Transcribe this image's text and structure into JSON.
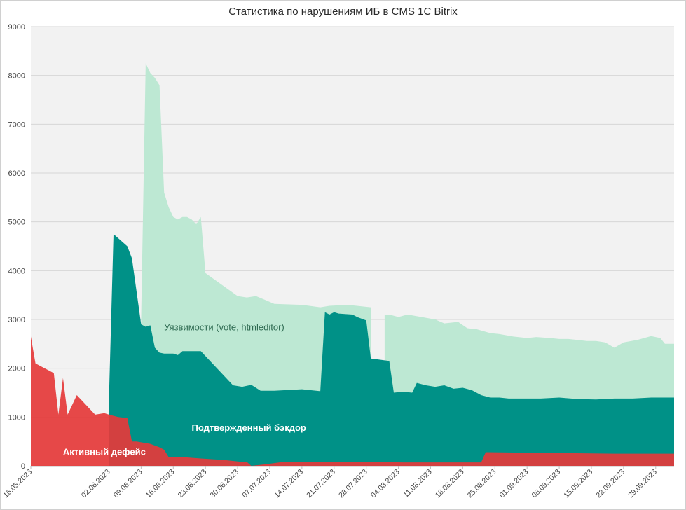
{
  "chart_data": {
    "type": "area",
    "title": "Статистика по нарушениям ИБ в CMS 1C Bitrix",
    "x_format": "DD.MM.YYYY",
    "start_date": "2023-05-16",
    "xlim": [
      "2023-05-16",
      "2023-10-03"
    ],
    "ylim": [
      0,
      9000
    ],
    "yticks": [
      0,
      1000,
      2000,
      3000,
      4000,
      5000,
      6000,
      7000,
      8000,
      9000
    ],
    "xtick_labels": [
      "16.05.2023",
      "02.06.2023",
      "09.06.2023",
      "16.06.2023",
      "23.06.2023",
      "30.06.2023",
      "07.07.2023",
      "14.07.2023",
      "21.07.2023",
      "28.07.2023",
      "04.08.2023",
      "11.08.2023",
      "18.08.2023",
      "25.08.2023",
      "01.09.2023",
      "08.09.2023",
      "15.09.2023",
      "22.09.2023",
      "29.09.2023"
    ],
    "xtick_dates": [
      "2023-05-16",
      "2023-06-02",
      "2023-06-09",
      "2023-06-16",
      "2023-06-23",
      "2023-06-30",
      "2023-07-07",
      "2023-07-14",
      "2023-07-21",
      "2023-07-28",
      "2023-08-04",
      "2023-08-11",
      "2023-08-18",
      "2023-08-25",
      "2023-09-01",
      "2023-09-08",
      "2023-09-15",
      "2023-09-22",
      "2023-09-29"
    ],
    "grid": true,
    "legend": "none",
    "series": [
      {
        "name": "Уязвимости (vote, htmleditor)",
        "color": "#bde8d3",
        "points": [
          [
            "2023-06-09",
            3000
          ],
          [
            "2023-06-10",
            8250
          ],
          [
            "2023-06-11",
            8050
          ],
          [
            "2023-06-12",
            7950
          ],
          [
            "2023-06-13",
            7800
          ],
          [
            "2023-06-14",
            5600
          ],
          [
            "2023-06-15",
            5300
          ],
          [
            "2023-06-16",
            5100
          ],
          [
            "2023-06-17",
            5050
          ],
          [
            "2023-06-18",
            5100
          ],
          [
            "2023-06-19",
            5100
          ],
          [
            "2023-06-20",
            5050
          ],
          [
            "2023-06-21",
            4950
          ],
          [
            "2023-06-22",
            5100
          ],
          [
            "2023-06-23",
            3950
          ],
          [
            "2023-06-30",
            3480
          ],
          [
            "2023-07-02",
            3450
          ],
          [
            "2023-07-04",
            3480
          ],
          [
            "2023-07-06",
            3400
          ],
          [
            "2023-07-08",
            3320
          ],
          [
            "2023-07-14",
            3300
          ],
          [
            "2023-07-18",
            3250
          ],
          [
            "2023-07-20",
            3280
          ],
          [
            "2023-07-24",
            3300
          ],
          [
            "2023-07-29",
            3250
          ],
          [
            "2023-07-31",
            null
          ],
          [
            "2023-08-01",
            3100
          ],
          [
            "2023-08-02",
            3100
          ],
          [
            "2023-08-04",
            3050
          ],
          [
            "2023-08-06",
            3100
          ],
          [
            "2023-08-09",
            3050
          ],
          [
            "2023-08-12",
            3000
          ],
          [
            "2023-08-14",
            2920
          ],
          [
            "2023-08-17",
            2950
          ],
          [
            "2023-08-19",
            2820
          ],
          [
            "2023-08-21",
            2800
          ],
          [
            "2023-08-24",
            2720
          ],
          [
            "2023-08-26",
            2700
          ],
          [
            "2023-08-29",
            2650
          ],
          [
            "2023-09-01",
            2620
          ],
          [
            "2023-09-03",
            2640
          ],
          [
            "2023-09-06",
            2620
          ],
          [
            "2023-09-08",
            2600
          ],
          [
            "2023-09-10",
            2600
          ],
          [
            "2023-09-12",
            2580
          ],
          [
            "2023-09-14",
            2560
          ],
          [
            "2023-09-16",
            2560
          ],
          [
            "2023-09-18",
            2530
          ],
          [
            "2023-09-20",
            2420
          ],
          [
            "2023-09-22",
            2530
          ],
          [
            "2023-09-25",
            2580
          ],
          [
            "2023-09-28",
            2660
          ],
          [
            "2023-09-30",
            2620
          ],
          [
            "2023-10-01",
            2500
          ],
          [
            "2023-10-03",
            2500
          ]
        ],
        "annotation": "Уязвимости (vote, htmleditor)"
      },
      {
        "name": "Подтвержденный бэкдор",
        "color": "#009187",
        "points": [
          [
            "2023-06-02",
            1380
          ],
          [
            "2023-06-03",
            4750
          ],
          [
            "2023-06-06",
            4500
          ],
          [
            "2023-06-07",
            4250
          ],
          [
            "2023-06-09",
            2900
          ],
          [
            "2023-06-10",
            2850
          ],
          [
            "2023-06-11",
            2880
          ],
          [
            "2023-06-12",
            2420
          ],
          [
            "2023-06-13",
            2320
          ],
          [
            "2023-06-14",
            2300
          ],
          [
            "2023-06-16",
            2300
          ],
          [
            "2023-06-17",
            2270
          ],
          [
            "2023-06-18",
            2350
          ],
          [
            "2023-06-22",
            2350
          ],
          [
            "2023-06-29",
            1650
          ],
          [
            "2023-07-01",
            1620
          ],
          [
            "2023-07-03",
            1660
          ],
          [
            "2023-07-05",
            1540
          ],
          [
            "2023-07-08",
            1540
          ],
          [
            "2023-07-14",
            1570
          ],
          [
            "2023-07-18",
            1530
          ],
          [
            "2023-07-19",
            3150
          ],
          [
            "2023-07-20",
            3100
          ],
          [
            "2023-07-21",
            3150
          ],
          [
            "2023-07-22",
            3120
          ],
          [
            "2023-07-25",
            3100
          ],
          [
            "2023-07-26",
            3050
          ],
          [
            "2023-07-28",
            2980
          ],
          [
            "2023-07-29",
            2200
          ],
          [
            "2023-08-02",
            2150
          ],
          [
            "2023-08-03",
            1500
          ],
          [
            "2023-08-05",
            1520
          ],
          [
            "2023-08-07",
            1500
          ],
          [
            "2023-08-08",
            1700
          ],
          [
            "2023-08-10",
            1650
          ],
          [
            "2023-08-12",
            1620
          ],
          [
            "2023-08-14",
            1650
          ],
          [
            "2023-08-16",
            1580
          ],
          [
            "2023-08-18",
            1600
          ],
          [
            "2023-08-20",
            1550
          ],
          [
            "2023-08-22",
            1450
          ],
          [
            "2023-08-24",
            1400
          ],
          [
            "2023-08-26",
            1400
          ],
          [
            "2023-08-28",
            1380
          ],
          [
            "2023-09-01",
            1380
          ],
          [
            "2023-09-04",
            1380
          ],
          [
            "2023-09-08",
            1400
          ],
          [
            "2023-09-12",
            1370
          ],
          [
            "2023-09-16",
            1360
          ],
          [
            "2023-09-20",
            1380
          ],
          [
            "2023-09-24",
            1380
          ],
          [
            "2023-09-28",
            1400
          ],
          [
            "2023-10-03",
            1400
          ]
        ],
        "annotation": "Подтвержденный бэкдор"
      },
      {
        "name": "Активный дефейс",
        "color": "#e5393a",
        "points": [
          [
            "2023-05-16",
            2650
          ],
          [
            "2023-05-17",
            2100
          ],
          [
            "2023-05-18",
            2050
          ],
          [
            "2023-05-20",
            1950
          ],
          [
            "2023-05-21",
            1900
          ],
          [
            "2023-05-22",
            1050
          ],
          [
            "2023-05-23",
            1800
          ],
          [
            "2023-05-24",
            1050
          ],
          [
            "2023-05-26",
            1450
          ],
          [
            "2023-05-28",
            1250
          ],
          [
            "2023-05-30",
            1050
          ],
          [
            "2023-06-01",
            1080
          ],
          [
            "2023-06-02",
            1050
          ],
          [
            "2023-06-04",
            1000
          ],
          [
            "2023-06-06",
            980
          ],
          [
            "2023-06-07",
            500
          ],
          [
            "2023-06-08",
            500
          ],
          [
            "2023-06-11",
            450
          ],
          [
            "2023-06-13",
            380
          ],
          [
            "2023-06-14",
            330
          ],
          [
            "2023-06-15",
            180
          ],
          [
            "2023-06-18",
            180
          ],
          [
            "2023-06-22",
            150
          ],
          [
            "2023-06-27",
            120
          ],
          [
            "2023-07-01",
            80
          ],
          [
            "2023-07-02",
            80
          ],
          [
            "2023-07-03",
            0
          ],
          [
            "2023-07-06",
            30
          ],
          [
            "2023-07-10",
            80
          ],
          [
            "2023-07-28",
            80
          ],
          [
            "2023-08-05",
            70
          ],
          [
            "2023-08-22",
            70
          ],
          [
            "2023-08-23",
            280
          ],
          [
            "2023-09-01",
            270
          ],
          [
            "2023-09-10",
            260
          ],
          [
            "2023-09-20",
            250
          ],
          [
            "2023-10-03",
            250
          ]
        ],
        "annotation": "Активный дефейс"
      }
    ]
  }
}
